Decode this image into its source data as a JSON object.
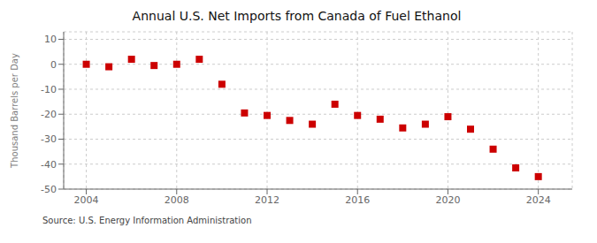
{
  "chart_data": {
    "type": "scatter",
    "title": "Annual U.S. Net Imports from Canada of Fuel Ethanol",
    "ylabel": "Thousand Barrels per Day",
    "annotation": "Source: U.S. Energy Information Administration",
    "x": [
      2004,
      2005,
      2006,
      2007,
      2008,
      2009,
      2010,
      2011,
      2012,
      2013,
      2014,
      2015,
      2016,
      2017,
      2018,
      2019,
      2020,
      2021,
      2022,
      2023,
      2024
    ],
    "values": [
      0.0,
      -1.0,
      2.0,
      -0.5,
      0.0,
      2.0,
      -8.0,
      -19.5,
      -20.5,
      -22.5,
      -24.0,
      -16.0,
      -20.5,
      -22.0,
      -25.5,
      -24.0,
      -21.0,
      -26.0,
      -34.0,
      -41.5,
      -45.0
    ],
    "color": "#cc0000",
    "marker": "square",
    "xlim": [
      2003.0,
      2025.5
    ],
    "ylim": [
      -50,
      13
    ],
    "xticks": [
      2004,
      2008,
      2012,
      2016,
      2020,
      2024
    ],
    "yticks": [
      -50,
      -40,
      -30,
      -20,
      -10,
      0,
      10
    ],
    "grid": true
  }
}
